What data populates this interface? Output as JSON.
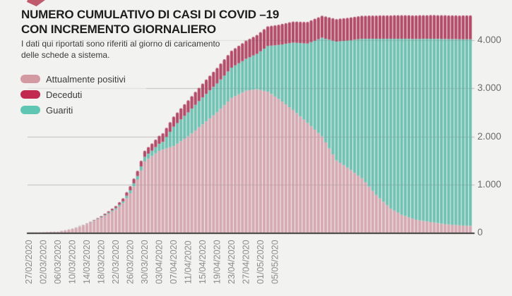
{
  "page": {
    "background": "#f2f2f1"
  },
  "decorations": {
    "corner_shape_color": "#c05a6d"
  },
  "header": {
    "title_line1": "NUMERO CUMULATIVO DI CASI DI COVID –19",
    "title_line2": "CON INCREMENTO GIORNALIERO",
    "subtitle_line1": "I dati qui riportati sono riferiti al giorno di caricamento",
    "subtitle_line2": "delle schede a sistema."
  },
  "legend": {
    "items": [
      {
        "label": "Attualmente positivi",
        "color": "#d49aa4"
      },
      {
        "label": "Deceduti",
        "color": "#c22950"
      },
      {
        "label": "Guariti",
        "color": "#5fc6b4"
      }
    ]
  },
  "chart_data": {
    "type": "bar",
    "stacked": true,
    "title": "Numero cumulativo di casi di COVID –19 con incremento giornaliero",
    "x_start_date": "27/02/2020",
    "x_unit": "1 bar = 1 day",
    "bar_count": 123,
    "x_tick_labels": [
      "27/02/2020",
      "02/03/2020",
      "06/03/2020",
      "10/03/2020",
      "14/03/2020",
      "18/03/2020",
      "22/03/2020",
      "26/03/2020",
      "30/03/2020",
      "03/04/2020",
      "07/04/2020",
      "11/04/2020",
      "15/04/2020",
      "19/04/2020",
      "23/04/2020",
      "27/04/2020",
      "01/05/2020",
      "05/05/2020"
    ],
    "x_tick_day_indices": [
      0,
      4,
      8,
      12,
      16,
      20,
      24,
      28,
      32,
      36,
      40,
      44,
      48,
      52,
      56,
      60,
      64,
      68
    ],
    "y_tick_labels": [
      "0",
      "1.000",
      "2.000",
      "3.000",
      "4.000"
    ],
    "y_tick_values": [
      0,
      1000,
      2000,
      3000,
      4000
    ],
    "ylim": [
      0,
      4650
    ],
    "grid": "horizontal",
    "legend_position": "top-left",
    "series_order_bottom_to_top": [
      "Attualmente positivi",
      "Guariti",
      "Deceduti"
    ],
    "series": [
      {
        "name": "Attualmente positivi",
        "color": "#d6a9b2",
        "anchors": [
          [
            0,
            2
          ],
          [
            4,
            6
          ],
          [
            8,
            20
          ],
          [
            12,
            85
          ],
          [
            16,
            175
          ],
          [
            20,
            310
          ],
          [
            24,
            480
          ],
          [
            26,
            610
          ],
          [
            28,
            820
          ],
          [
            30,
            1100
          ],
          [
            32,
            1480
          ],
          [
            36,
            1700
          ],
          [
            40,
            1800
          ],
          [
            44,
            2000
          ],
          [
            48,
            2250
          ],
          [
            52,
            2500
          ],
          [
            56,
            2800
          ],
          [
            60,
            2950
          ],
          [
            63,
            2980
          ],
          [
            66,
            2930
          ],
          [
            69,
            2780
          ],
          [
            73,
            2550
          ],
          [
            77,
            2280
          ],
          [
            81,
            2000
          ],
          [
            85,
            1500
          ],
          [
            89,
            1300
          ],
          [
            92,
            1130
          ],
          [
            96,
            780
          ],
          [
            100,
            500
          ],
          [
            103,
            370
          ],
          [
            107,
            265
          ],
          [
            111,
            220
          ],
          [
            115,
            175
          ],
          [
            119,
            150
          ],
          [
            122,
            140
          ]
        ]
      },
      {
        "name": "Guariti",
        "color": "#6fc2b3",
        "anchors": [
          [
            0,
            0
          ],
          [
            10,
            0
          ],
          [
            14,
            3
          ],
          [
            18,
            8
          ],
          [
            22,
            18
          ],
          [
            26,
            40
          ],
          [
            30,
            75
          ],
          [
            34,
            115
          ],
          [
            37,
            160
          ],
          [
            40,
            400
          ],
          [
            44,
            500
          ],
          [
            48,
            560
          ],
          [
            52,
            600
          ],
          [
            56,
            630
          ],
          [
            60,
            660
          ],
          [
            63,
            735
          ],
          [
            66,
            950
          ],
          [
            69,
            1120
          ],
          [
            73,
            1400
          ],
          [
            77,
            1650
          ],
          [
            81,
            2050
          ],
          [
            85,
            2470
          ],
          [
            89,
            2700
          ],
          [
            92,
            2900
          ],
          [
            96,
            3250
          ],
          [
            100,
            3530
          ],
          [
            103,
            3660
          ],
          [
            107,
            3760
          ],
          [
            111,
            3810
          ],
          [
            115,
            3850
          ],
          [
            119,
            3870
          ],
          [
            122,
            3880
          ]
        ]
      },
      {
        "name": "Deceduti",
        "color": "#b24a68",
        "anchors": [
          [
            0,
            0
          ],
          [
            12,
            0
          ],
          [
            14,
            2
          ],
          [
            16,
            5
          ],
          [
            18,
            10
          ],
          [
            20,
            18
          ],
          [
            22,
            30
          ],
          [
            24,
            45
          ],
          [
            26,
            65
          ],
          [
            28,
            90
          ],
          [
            30,
            110
          ],
          [
            34,
            150
          ],
          [
            38,
            190
          ],
          [
            42,
            235
          ],
          [
            46,
            270
          ],
          [
            50,
            310
          ],
          [
            54,
            340
          ],
          [
            58,
            365
          ],
          [
            62,
            390
          ],
          [
            66,
            410
          ],
          [
            70,
            428
          ],
          [
            75,
            445
          ],
          [
            80,
            458
          ],
          [
            85,
            470
          ],
          [
            90,
            477
          ],
          [
            95,
            483
          ],
          [
            100,
            488
          ],
          [
            105,
            491
          ],
          [
            110,
            493
          ],
          [
            115,
            494
          ],
          [
            122,
            495
          ]
        ]
      }
    ],
    "values_note": "Daily values read from pixels; linear interpolation between [day,value] anchors."
  }
}
